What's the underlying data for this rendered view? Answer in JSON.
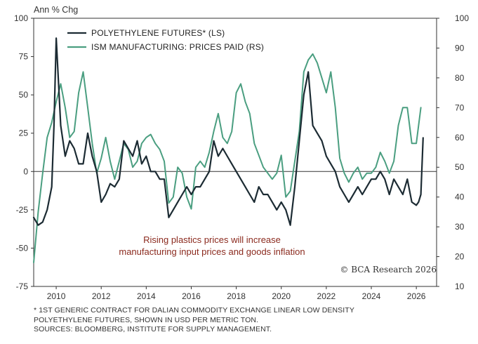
{
  "chart_data": {
    "type": "line",
    "ylabel_left": "Ann % Chg",
    "ylim_left": [
      -75,
      100
    ],
    "yticks_left": [
      -75,
      -50,
      -25,
      0,
      25,
      50,
      75,
      100
    ],
    "ylim_right": [
      10,
      100
    ],
    "yticks_right": [
      10,
      20,
      30,
      40,
      50,
      60,
      70,
      80,
      90,
      100
    ],
    "xlim": [
      2009.0,
      2026.9
    ],
    "xticks": [
      2010,
      2012,
      2014,
      2016,
      2018,
      2020,
      2022,
      2024,
      2026
    ],
    "legend_placement": "top-left",
    "grid": false,
    "series": [
      {
        "name": "POLYETHYLENE FUTURES* (LS)",
        "axis": "left",
        "color": "#1c2b33",
        "x": [
          2009.0,
          2009.2,
          2009.4,
          2009.6,
          2009.8,
          2009.9,
          2010.0,
          2010.2,
          2010.4,
          2010.6,
          2010.8,
          2011.0,
          2011.2,
          2011.4,
          2011.6,
          2011.8,
          2012.0,
          2012.2,
          2012.4,
          2012.6,
          2012.8,
          2013.0,
          2013.2,
          2013.4,
          2013.6,
          2013.8,
          2014.0,
          2014.2,
          2014.4,
          2014.6,
          2014.8,
          2015.0,
          2015.2,
          2015.4,
          2015.6,
          2015.8,
          2016.0,
          2016.2,
          2016.4,
          2016.6,
          2016.8,
          2017.0,
          2017.2,
          2017.4,
          2017.6,
          2017.8,
          2018.0,
          2018.2,
          2018.4,
          2018.6,
          2018.8,
          2019.0,
          2019.2,
          2019.4,
          2019.6,
          2019.8,
          2020.0,
          2020.2,
          2020.4,
          2020.6,
          2020.8,
          2021.0,
          2021.2,
          2021.4,
          2021.6,
          2021.8,
          2022.0,
          2022.2,
          2022.4,
          2022.6,
          2022.8,
          2023.0,
          2023.2,
          2023.4,
          2023.6,
          2023.8,
          2024.0,
          2024.2,
          2024.4,
          2024.6,
          2024.8,
          2025.0,
          2025.2,
          2025.4,
          2025.6,
          2025.8,
          2026.0,
          2026.1,
          2026.2,
          2026.3
        ],
        "values": [
          -30,
          -35,
          -33,
          -25,
          -10,
          30,
          87,
          30,
          10,
          20,
          15,
          5,
          5,
          25,
          10,
          0,
          -20,
          -15,
          -8,
          -10,
          -5,
          20,
          15,
          10,
          20,
          5,
          10,
          0,
          0,
          -5,
          -5,
          -30,
          -25,
          -20,
          -15,
          -10,
          -15,
          -10,
          -10,
          -5,
          0,
          20,
          10,
          15,
          10,
          5,
          0,
          -5,
          -10,
          -15,
          -20,
          -10,
          -15,
          -15,
          -20,
          -25,
          -20,
          -25,
          -35,
          -10,
          20,
          50,
          65,
          30,
          25,
          20,
          10,
          5,
          0,
          -10,
          -15,
          -20,
          -15,
          -10,
          -15,
          -10,
          -5,
          -5,
          0,
          -5,
          -15,
          -5,
          -10,
          -15,
          -5,
          -20,
          -22,
          -20,
          -15,
          22
        ]
      },
      {
        "name": "ISM MANUFACTURING: PRICES PAID (RS)",
        "axis": "right",
        "color": "#4a9e80",
        "x": [
          2009.0,
          2009.2,
          2009.4,
          2009.6,
          2009.8,
          2010.0,
          2010.2,
          2010.4,
          2010.6,
          2010.8,
          2011.0,
          2011.2,
          2011.4,
          2011.6,
          2011.8,
          2012.0,
          2012.2,
          2012.4,
          2012.6,
          2012.8,
          2013.0,
          2013.2,
          2013.4,
          2013.6,
          2013.8,
          2014.0,
          2014.2,
          2014.4,
          2014.6,
          2014.8,
          2015.0,
          2015.2,
          2015.4,
          2015.6,
          2015.8,
          2016.0,
          2016.2,
          2016.4,
          2016.6,
          2016.8,
          2017.0,
          2017.2,
          2017.4,
          2017.6,
          2017.8,
          2018.0,
          2018.2,
          2018.4,
          2018.6,
          2018.8,
          2019.0,
          2019.2,
          2019.4,
          2019.6,
          2019.8,
          2020.0,
          2020.2,
          2020.4,
          2020.6,
          2020.8,
          2021.0,
          2021.2,
          2021.4,
          2021.6,
          2021.8,
          2022.0,
          2022.2,
          2022.4,
          2022.6,
          2022.8,
          2023.0,
          2023.2,
          2023.4,
          2023.6,
          2023.8,
          2024.0,
          2024.2,
          2024.4,
          2024.6,
          2024.8,
          2025.0,
          2025.2,
          2025.4,
          2025.6,
          2025.8,
          2026.0,
          2026.2
        ],
        "values": [
          18,
          35,
          48,
          60,
          65,
          72,
          78,
          70,
          60,
          62,
          75,
          82,
          70,
          58,
          48,
          53,
          60,
          52,
          46,
          52,
          58,
          56,
          50,
          52,
          58,
          60,
          61,
          58,
          56,
          52,
          38,
          40,
          50,
          48,
          40,
          36,
          50,
          52,
          50,
          55,
          62,
          68,
          60,
          58,
          62,
          75,
          78,
          72,
          68,
          58,
          54,
          50,
          48,
          46,
          48,
          54,
          40,
          42,
          52,
          62,
          82,
          86,
          88,
          85,
          80,
          75,
          82,
          70,
          53,
          48,
          45,
          48,
          50,
          46,
          48,
          48,
          50,
          55,
          52,
          48,
          52,
          64,
          70,
          70,
          58,
          58,
          70
        ]
      }
    ],
    "annotation_lines": [
      "Rising plastics prices will increase",
      "manufacturing input prices and goods inflation"
    ],
    "credit": "© BCA Research 2026",
    "footnote_lines": [
      "* 1ST GENERIC CONTRACT FOR DALIAN COMMODITY EXCHANGE LINEAR LOW DENSITY",
      "POLYETHYLENE FUTURES, SHOWN IN USD PER METRIC TON.",
      "SOURCES: BLOOMBERG, INSTITUTE FOR SUPPLY MANAGEMENT."
    ]
  }
}
